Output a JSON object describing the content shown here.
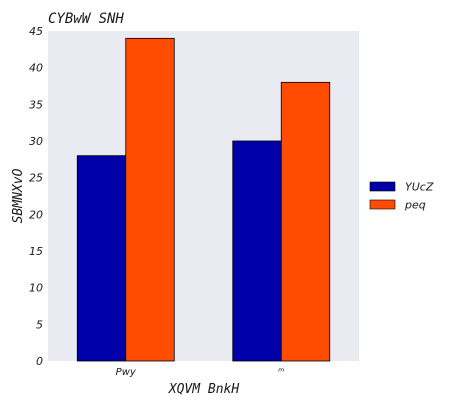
{
  "chart_data": {
    "type": "bar",
    "title": "CYBwW SNH",
    "xlabel": "XQVM BnkH",
    "ylabel": "SBMNXvO",
    "categories": [
      "Pwy",
      "ᵐ"
    ],
    "series": [
      {
        "name": "YUcZ",
        "values": [
          28,
          30
        ],
        "color": "#0000a8"
      },
      {
        "name": "peq",
        "values": [
          44,
          38
        ],
        "color": "#ff4c00"
      }
    ],
    "ylim": [
      0,
      45
    ],
    "yticks": [
      0,
      5,
      10,
      15,
      20,
      25,
      30,
      35,
      40,
      45
    ],
    "grid": false,
    "legend_position": "right",
    "background": "#eaeaf2"
  }
}
